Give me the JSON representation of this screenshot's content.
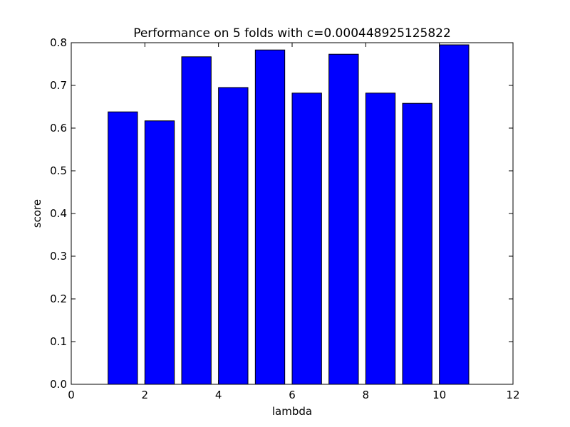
{
  "chart_data": {
    "type": "bar",
    "title": "Performance on 5 folds with c=0.000448925125822",
    "xlabel": "lambda",
    "ylabel": "score",
    "x": [
      1,
      2,
      3,
      4,
      5,
      6,
      7,
      8,
      9,
      10
    ],
    "values": [
      0.638,
      0.617,
      0.767,
      0.695,
      0.783,
      0.682,
      0.773,
      0.682,
      0.658,
      0.795
    ],
    "bar_width": 0.8,
    "xlim": [
      0,
      12
    ],
    "ylim": [
      0.0,
      0.8
    ],
    "xticks": [
      0,
      2,
      4,
      6,
      8,
      10,
      12
    ],
    "yticks": [
      0.0,
      0.1,
      0.2,
      0.3,
      0.4,
      0.5,
      0.6,
      0.7,
      0.8
    ],
    "xtick_labels": [
      "0",
      "2",
      "4",
      "6",
      "8",
      "10",
      "12"
    ],
    "ytick_labels": [
      "0.0",
      "0.1",
      "0.2",
      "0.3",
      "0.4",
      "0.5",
      "0.6",
      "0.7",
      "0.8"
    ],
    "bar_color": "#0000ff",
    "edge_color": "#000000",
    "grid": false,
    "legend": "none"
  }
}
